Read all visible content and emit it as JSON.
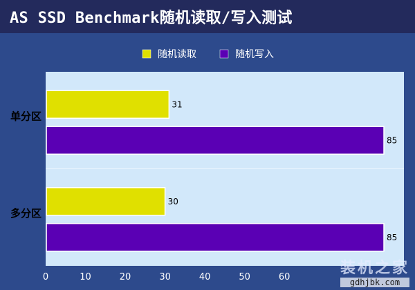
{
  "header": {
    "title": "AS SSD Benchmark随机读取/写入测试"
  },
  "chart_data": {
    "type": "bar",
    "orientation": "horizontal",
    "categories": [
      "单分区",
      "多分区"
    ],
    "series": [
      {
        "name": "随机读取",
        "values": [
          31,
          30
        ],
        "color": "#e0e000"
      },
      {
        "name": "随机写入",
        "values": [
          85,
          85
        ],
        "color": "#5a00b4"
      }
    ],
    "xlim": [
      0,
      90
    ],
    "xticks": [
      0,
      10,
      20,
      30,
      40,
      50,
      60
    ],
    "grid": false,
    "legend": "top-center",
    "plot_bg": "#d2e8fa"
  },
  "watermark": {
    "main": "装机之家",
    "url": "gdhjbk.com"
  }
}
